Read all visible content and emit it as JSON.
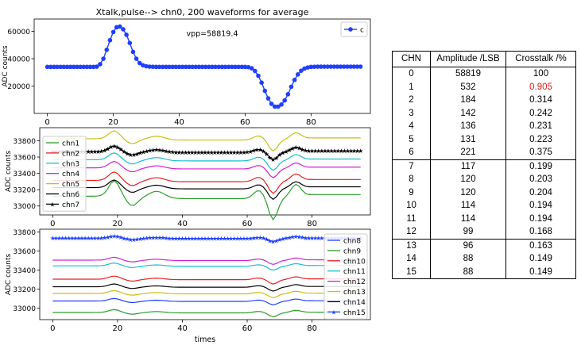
{
  "chart_data": [
    {
      "type": "line",
      "title": "Xtalk,pulse--> chn0, 200 waveforms for average",
      "ylabel": "ADC counts",
      "annotation": "vpp=58819.4",
      "xlim": [
        -4,
        98
      ],
      "ylim": [
        0,
        69000
      ],
      "xticks": [
        0,
        20,
        40,
        60,
        80
      ],
      "yticks": [
        20000,
        40000,
        60000
      ],
      "legend": "top-right",
      "series": [
        {
          "name": "c",
          "color": "#1f3fff",
          "marker": "circle",
          "x": [
            0,
            1,
            2,
            3,
            4,
            5,
            6,
            7,
            8,
            9,
            10,
            11,
            12,
            13,
            14,
            15,
            16,
            17,
            18,
            19,
            20,
            21,
            22,
            23,
            24,
            25,
            26,
            27,
            28,
            29,
            30,
            31,
            32,
            33,
            34,
            35,
            36,
            37,
            38,
            39,
            40,
            41,
            42,
            43,
            44,
            45,
            46,
            47,
            48,
            49,
            50,
            51,
            52,
            53,
            54,
            55,
            56,
            57,
            58,
            59,
            60,
            61,
            62,
            63,
            64,
            65,
            66,
            67,
            68,
            69,
            70,
            71,
            72,
            73,
            74,
            75,
            76,
            77,
            78,
            79,
            80,
            81,
            82,
            83,
            84,
            85,
            86,
            87,
            88,
            89,
            90,
            91,
            92,
            93,
            94,
            95
          ],
          "values": [
            34000,
            34000,
            34000,
            34000,
            34000,
            34000,
            34000,
            34000,
            34000,
            34000,
            34000,
            34000,
            34000,
            34000,
            34000,
            34200,
            36000,
            40000,
            46500,
            53500,
            59500,
            63000,
            63500,
            61500,
            57500,
            51500,
            45000,
            40000,
            36800,
            35200,
            34500,
            34200,
            34100,
            34000,
            34000,
            34000,
            34000,
            34000,
            34000,
            34000,
            34000,
            34000,
            34000,
            34000,
            34000,
            34000,
            34000,
            34000,
            34000,
            34000,
            34000,
            34000,
            34000,
            34000,
            34000,
            34000,
            34000,
            34000,
            34000,
            34000,
            34000,
            33800,
            33000,
            31000,
            27500,
            22500,
            16500,
            11000,
            7000,
            5000,
            5000,
            6500,
            9500,
            14000,
            19500,
            24500,
            28500,
            31200,
            32800,
            33600,
            34000,
            34100,
            34200,
            34200,
            34200,
            34200,
            34200,
            34200,
            34200,
            34200,
            34200,
            34200,
            34200,
            34200,
            34200,
            34200
          ]
        }
      ]
    },
    {
      "type": "line",
      "ylabel": "ADC counts",
      "xlim": [
        -4,
        98
      ],
      "ylim": [
        32890,
        33960
      ],
      "xticks": [
        0,
        20,
        40,
        60,
        80
      ],
      "yticks": [
        33000,
        33200,
        33400,
        33600,
        33800
      ],
      "legend": "upper-left",
      "series": [
        {
          "name": "chn1",
          "color": "#2a9d2a",
          "baseline": 33150,
          "amp": 1.0
        },
        {
          "name": "chn2",
          "color": "#e81e1e",
          "baseline": 33330,
          "amp": 0.55
        },
        {
          "name": "chn3",
          "color": "#17becf",
          "baseline": 33580,
          "amp": 0.45
        },
        {
          "name": "chn4",
          "color": "#d420d4",
          "baseline": 33480,
          "amp": 0.42
        },
        {
          "name": "chn5",
          "color": "#c8be14",
          "baseline": 33840,
          "amp": 0.52
        },
        {
          "name": "chn6",
          "color": "#000000",
          "baseline": 33240,
          "amp": 0.5
        },
        {
          "name": "chn7",
          "color": "#000000",
          "baseline": 33680,
          "amp": 0.35,
          "marker": "star"
        }
      ]
    },
    {
      "type": "line",
      "xlabel": "times",
      "ylabel": "ADC counts",
      "xlim": [
        -4,
        98
      ],
      "ylim": [
        32880,
        33830
      ],
      "xticks": [
        0,
        20,
        40,
        60,
        80
      ],
      "yticks": [
        33000,
        33200,
        33400,
        33600,
        33800
      ],
      "legend": "right",
      "series": [
        {
          "name": "chn8",
          "color": "#1f3fff",
          "baseline": 33080,
          "amp": 0.4
        },
        {
          "name": "chn9",
          "color": "#2a9d2a",
          "baseline": 32960,
          "amp": 0.45
        },
        {
          "name": "chn10",
          "color": "#e81e1e",
          "baseline": 33310,
          "amp": 0.5
        },
        {
          "name": "chn11",
          "color": "#17becf",
          "baseline": 33450,
          "amp": 0.45
        },
        {
          "name": "chn12",
          "color": "#d420d4",
          "baseline": 33510,
          "amp": 0.45
        },
        {
          "name": "chn13",
          "color": "#c8be14",
          "baseline": 33160,
          "amp": 0.45
        },
        {
          "name": "chn14",
          "color": "#000000",
          "baseline": 33230,
          "amp": 0.45
        },
        {
          "name": "chn15",
          "color": "#1f3fff",
          "baseline": 33740,
          "amp": 0.35,
          "marker": "star"
        }
      ]
    },
    {
      "type": "table",
      "columns": [
        "CHN",
        "Amplitude /LSB",
        "Crosstalk /%"
      ],
      "highlight_color": "#e81e1e",
      "rows": [
        [
          "0",
          "58819",
          "100"
        ],
        [
          "1",
          "532",
          "0.905"
        ],
        [
          "2",
          "184",
          "0.314"
        ],
        [
          "3",
          "142",
          "0.242"
        ],
        [
          "4",
          "136",
          "0.231"
        ],
        [
          "5",
          "131",
          "0.223"
        ],
        [
          "6",
          "221",
          "0.375"
        ],
        [
          "7",
          "117",
          "0.199"
        ],
        [
          "8",
          "120",
          "0.203"
        ],
        [
          "9",
          "120",
          "0.204"
        ],
        [
          "10",
          "114",
          "0.194"
        ],
        [
          "11",
          "114",
          "0.194"
        ],
        [
          "12",
          "99",
          "0.168"
        ],
        [
          "13",
          "96",
          "0.163"
        ],
        [
          "14",
          "88",
          "0.149"
        ],
        [
          "15",
          "88",
          "0.149"
        ]
      ]
    }
  ]
}
